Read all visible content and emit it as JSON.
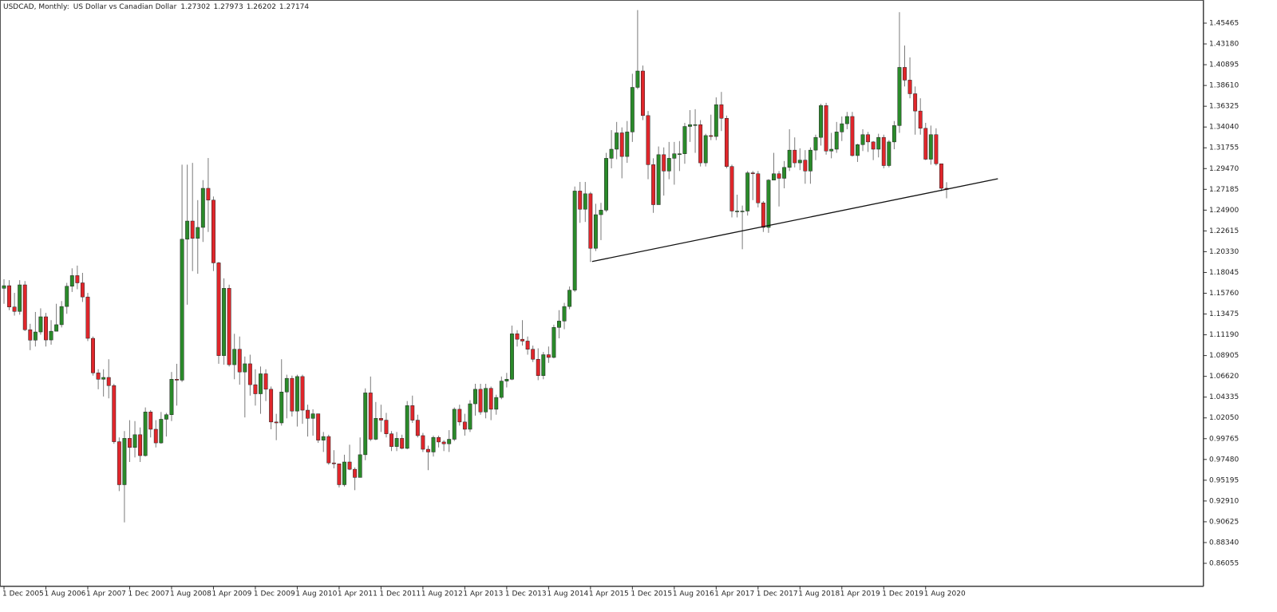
{
  "chart_data": {
    "type": "candlestick",
    "title": "USDCAD, Monthly:",
    "subtitle": "US Dollar vs Canadian Dollar",
    "quote": [
      1.27302,
      1.27973,
      1.26202,
      1.27174
    ],
    "up_color": "#2a8a2a",
    "down_color": "#e0262b",
    "wick_color": "#7a7a7a",
    "ylim": [
      0.8351,
      1.4801
    ],
    "yticks": [
      1.45465,
      {
        "value": 1.4318,
        "label": "1.43180"
      },
      1.40895,
      {
        "value": 1.3861,
        "label": "1.38610"
      },
      1.36325,
      {
        "value": 1.3404,
        "label": "1.34040"
      },
      1.31755,
      {
        "value": 1.2947,
        "label": "1.29470"
      },
      1.27185,
      {
        "value": 1.249,
        "label": "1.24900"
      },
      1.22615,
      {
        "value": 1.2033,
        "label": "1.20330"
      },
      1.18045,
      {
        "value": 1.1576,
        "label": "1.15760"
      },
      1.13475,
      {
        "value": 1.1119,
        "label": "1.11190"
      },
      1.08905,
      {
        "value": 1.0662,
        "label": "1.06620"
      },
      1.04335,
      {
        "value": 1.0205,
        "label": "1.02050"
      },
      0.99765,
      {
        "value": 0.9748,
        "label": "0.97480"
      },
      0.95195,
      {
        "value": 0.9291,
        "label": "0.92910"
      },
      0.90625,
      {
        "value": 0.8834,
        "label": "0.88340"
      },
      0.86055
    ],
    "categories": [
      "1 Dec 2005",
      null,
      null,
      null,
      null,
      null,
      null,
      null,
      "1 Aug 2006",
      null,
      null,
      null,
      null,
      null,
      null,
      null,
      "1 Apr 2007",
      null,
      null,
      null,
      null,
      null,
      null,
      null,
      "1 Dec 2007",
      null,
      null,
      null,
      null,
      null,
      null,
      null,
      "1 Aug 2008",
      null,
      null,
      null,
      null,
      null,
      null,
      null,
      "1 Apr 2009",
      null,
      null,
      null,
      null,
      null,
      null,
      null,
      "1 Dec 2009",
      null,
      null,
      null,
      null,
      null,
      null,
      null,
      "1 Aug 2010",
      null,
      null,
      null,
      null,
      null,
      null,
      null,
      "1 Apr 2011",
      null,
      null,
      null,
      null,
      null,
      null,
      null,
      "1 Dec 2011",
      null,
      null,
      null,
      null,
      null,
      null,
      null,
      "1 Aug 2012",
      null,
      null,
      null,
      null,
      null,
      null,
      null,
      "1 Apr 2013",
      null,
      null,
      null,
      null,
      null,
      null,
      null,
      "1 Dec 2013",
      null,
      null,
      null,
      null,
      null,
      null,
      null,
      "1 Aug 2014",
      null,
      null,
      null,
      null,
      null,
      null,
      null,
      "1 Apr 2015",
      null,
      null,
      null,
      null,
      null,
      null,
      null,
      "1 Dec 2015",
      null,
      null,
      null,
      null,
      null,
      null,
      null,
      "1 Aug 2016",
      null,
      null,
      null,
      null,
      null,
      null,
      null,
      "1 Apr 2017",
      null,
      null,
      null,
      null,
      null,
      null,
      null,
      "1 Dec 2017",
      null,
      null,
      null,
      null,
      null,
      null,
      null,
      "1 Aug 2018",
      null,
      null,
      null,
      null,
      null,
      null,
      null,
      "1 Apr 2019",
      null,
      null,
      null,
      null,
      null,
      null,
      null,
      "1 Dec 2019",
      null,
      null,
      null,
      null,
      null,
      null,
      null,
      "1 Aug 2020",
      null,
      null,
      null,
      null
    ],
    "open": [
      1.163,
      1.1659,
      1.1425,
      1.1376,
      1.1668,
      1.1175,
      1.106,
      1.115,
      1.1317,
      1.1062,
      1.1158,
      1.123,
      1.143,
      1.1653,
      1.177,
      1.169,
      1.1535,
      1.108,
      1.07,
      1.063,
      1.065,
      1.056,
      0.9943,
      0.947,
      0.998,
      0.988,
      1.002,
      0.979,
      1.027,
      1.008,
      0.993,
      1.019,
      1.024,
      1.063,
      1.062,
      1.217,
      1.237,
      1.218,
      1.23,
      1.273,
      1.26,
      1.191,
      1.089,
      1.163,
      1.079,
      1.096,
      1.071,
      1.08,
      1.057,
      1.047,
      1.069,
      1.052,
      1.016,
      1.015,
      1.049,
      1.064,
      1.028,
      1.066,
      1.029,
      1.02,
      1.025,
      0.996,
      1.0,
      0.971,
      0.97,
      0.947,
      0.972,
      0.964,
      0.955,
      0.98,
      1.048,
      0.997,
      1.02,
      1.018,
      1.003,
      0.989,
      0.998,
      0.987,
      1.034,
      1.018,
      1.001,
      0.986,
      0.983,
      0.999,
      0.994,
      0.992,
      0.997,
      1.03,
      1.016,
      1.008,
      1.036,
      1.052,
      1.027,
      1.053,
      1.03,
      1.043,
      1.061,
      1.063,
      1.113,
      1.107,
      1.105,
      1.096,
      1.085,
      1.067,
      1.09,
      1.087,
      1.12,
      1.127,
      1.143,
      1.161,
      1.27,
      1.25,
      1.267,
      1.207,
      1.244,
      1.249,
      1.306,
      1.316,
      1.334,
      1.308,
      1.335,
      1.384,
      1.402,
      1.353,
      1.299,
      1.255,
      1.31,
      1.292,
      1.306,
      1.311,
      1.311,
      1.341,
      1.343,
      1.343,
      1.301,
      1.331,
      1.33,
      1.365,
      1.35,
      1.297,
      1.248,
      1.248,
      1.248,
      1.29,
      1.289,
      1.257,
      1.23,
      1.282,
      1.289,
      1.284,
      1.296,
      1.315,
      1.301,
      1.304,
      1.292,
      1.315,
      1.329,
      1.364,
      1.314,
      1.316,
      1.335,
      1.344,
      1.352,
      1.309,
      1.321,
      1.332,
      1.324,
      1.316,
      1.329,
      1.298,
      1.324,
      1.342,
      1.406,
      1.392,
      1.377,
      1.358,
      1.339,
      1.305,
      1.332,
      1.3,
      1.27302
    ],
    "high": [
      1.173,
      1.172,
      1.158,
      1.172,
      1.171,
      1.124,
      1.137,
      1.141,
      1.136,
      1.128,
      1.146,
      1.149,
      1.169,
      1.185,
      1.188,
      1.18,
      1.158,
      1.11,
      1.074,
      1.074,
      1.085,
      1.058,
      0.999,
      1.006,
      1.018,
      1.017,
      1.01,
      1.032,
      1.029,
      1.018,
      1.027,
      1.026,
      1.071,
      1.08,
      1.299,
      1.299,
      1.301,
      1.26,
      1.282,
      1.3063,
      1.264,
      1.192,
      1.174,
      1.167,
      1.113,
      1.11,
      1.088,
      1.09,
      1.074,
      1.077,
      1.074,
      1.055,
      1.025,
      1.085,
      1.068,
      1.067,
      1.068,
      1.068,
      1.035,
      1.03,
      1.025,
      1.005,
      1.002,
      0.985,
      0.97,
      0.98,
      0.991,
      0.966,
      0.999,
      1.053,
      1.066,
      1.038,
      1.035,
      1.026,
      1.006,
      1.005,
      1.002,
      1.039,
      1.045,
      1.024,
      1.004,
      0.99,
      1.001,
      1.001,
      0.996,
      1.007,
      1.032,
      1.035,
      1.025,
      1.04,
      1.058,
      1.058,
      1.058,
      1.055,
      1.046,
      1.066,
      1.07,
      1.122,
      1.117,
      1.128,
      1.11,
      1.1,
      1.097,
      1.093,
      1.099,
      1.123,
      1.139,
      1.147,
      1.165,
      1.275,
      1.28,
      1.28,
      1.269,
      1.256,
      1.257,
      1.312,
      1.337,
      1.346,
      1.34,
      1.347,
      1.399,
      1.469,
      1.408,
      1.358,
      1.306,
      1.319,
      1.318,
      1.324,
      1.324,
      1.325,
      1.345,
      1.359,
      1.36,
      1.348,
      1.333,
      1.354,
      1.373,
      1.379,
      1.353,
      1.299,
      1.266,
      1.254,
      1.292,
      1.292,
      1.292,
      1.259,
      1.283,
      1.312,
      1.292,
      1.303,
      1.338,
      1.329,
      1.317,
      1.315,
      1.318,
      1.332,
      1.366,
      1.367,
      1.334,
      1.346,
      1.352,
      1.357,
      1.357,
      1.322,
      1.338,
      1.335,
      1.325,
      1.333,
      1.332,
      1.326,
      1.347,
      1.4667,
      1.43,
      1.417,
      1.385,
      1.372,
      1.345,
      1.342,
      1.339,
      1.3,
      1.27973
    ],
    "low": [
      1.146,
      1.139,
      1.133,
      1.134,
      1.116,
      1.095,
      1.099,
      1.112,
      1.099,
      1.101,
      1.116,
      1.12,
      1.135,
      1.159,
      1.162,
      1.148,
      1.105,
      1.067,
      1.052,
      1.044,
      1.042,
      0.992,
      0.94,
      0.9056,
      0.972,
      0.977,
      0.972,
      0.978,
      0.999,
      0.988,
      0.992,
      1.0,
      1.017,
      1.034,
      1.06,
      1.145,
      1.182,
      1.179,
      1.214,
      1.225,
      1.182,
      1.08,
      1.079,
      1.077,
      1.063,
      1.057,
      1.021,
      1.045,
      1.034,
      1.025,
      1.039,
      1.008,
      0.996,
      1.012,
      1.02,
      1.022,
      1.011,
      1.014,
      1.0,
      1.001,
      0.993,
      0.983,
      0.969,
      0.965,
      0.944,
      0.945,
      0.963,
      0.941,
      0.955,
      0.974,
      0.995,
      0.996,
      1.005,
      0.999,
      0.984,
      0.984,
      0.986,
      0.986,
      1.015,
      0.999,
      0.983,
      0.963,
      0.978,
      0.988,
      0.984,
      0.983,
      0.995,
      1.012,
      1.001,
      1.005,
      1.023,
      1.024,
      1.02,
      1.018,
      1.024,
      1.041,
      1.054,
      1.062,
      1.099,
      1.1,
      1.09,
      1.082,
      1.062,
      1.063,
      1.081,
      1.086,
      1.108,
      1.118,
      1.14,
      1.159,
      1.235,
      1.236,
      1.192,
      1.204,
      1.216,
      1.247,
      1.295,
      1.305,
      1.284,
      1.301,
      1.324,
      1.382,
      1.348,
      1.283,
      1.246,
      1.255,
      1.265,
      1.283,
      1.277,
      1.292,
      1.3,
      1.324,
      1.312,
      1.297,
      1.297,
      1.326,
      1.326,
      1.336,
      1.295,
      1.241,
      1.241,
      1.206,
      1.243,
      1.26,
      1.252,
      1.225,
      1.224,
      1.282,
      1.253,
      1.273,
      1.292,
      1.296,
      1.293,
      1.278,
      1.278,
      1.304,
      1.32,
      1.31,
      1.306,
      1.312,
      1.325,
      1.338,
      1.308,
      1.302,
      1.314,
      1.313,
      1.304,
      1.307,
      1.295,
      1.296,
      1.316,
      1.334,
      1.385,
      1.372,
      1.332,
      1.332,
      1.304,
      1.299,
      1.298,
      1.27,
      1.26202
    ],
    "close": [
      1.1659,
      1.1425,
      1.1376,
      1.1668,
      1.1175,
      1.106,
      1.115,
      1.1317,
      1.1062,
      1.1158,
      1.123,
      1.143,
      1.1653,
      1.177,
      1.169,
      1.1535,
      1.108,
      1.07,
      1.063,
      1.065,
      1.056,
      0.9943,
      0.947,
      0.998,
      0.988,
      1.002,
      0.979,
      1.027,
      1.008,
      0.993,
      1.019,
      1.024,
      1.063,
      1.062,
      1.217,
      1.237,
      1.218,
      1.23,
      1.273,
      1.26,
      1.191,
      1.089,
      1.163,
      1.079,
      1.096,
      1.071,
      1.08,
      1.057,
      1.047,
      1.069,
      1.052,
      1.016,
      1.015,
      1.049,
      1.064,
      1.028,
      1.066,
      1.029,
      1.02,
      1.025,
      0.996,
      1.0,
      0.971,
      0.97,
      0.947,
      0.972,
      0.964,
      0.955,
      0.98,
      1.048,
      0.997,
      1.02,
      1.018,
      1.003,
      0.989,
      0.998,
      0.987,
      1.034,
      1.018,
      1.001,
      0.986,
      0.983,
      0.999,
      0.994,
      0.992,
      0.997,
      1.03,
      1.016,
      1.008,
      1.036,
      1.052,
      1.027,
      1.053,
      1.03,
      1.043,
      1.061,
      1.063,
      1.113,
      1.107,
      1.105,
      1.096,
      1.085,
      1.067,
      1.09,
      1.087,
      1.12,
      1.127,
      1.143,
      1.161,
      1.27,
      1.25,
      1.267,
      1.207,
      1.244,
      1.249,
      1.306,
      1.316,
      1.334,
      1.308,
      1.335,
      1.384,
      1.402,
      1.353,
      1.299,
      1.255,
      1.31,
      1.292,
      1.306,
      1.311,
      1.311,
      1.341,
      1.343,
      1.343,
      1.301,
      1.331,
      1.33,
      1.365,
      1.35,
      1.297,
      1.248,
      1.248,
      1.248,
      1.29,
      1.289,
      1.257,
      1.23,
      1.282,
      1.289,
      1.284,
      1.296,
      1.315,
      1.301,
      1.304,
      1.292,
      1.315,
      1.329,
      1.364,
      1.314,
      1.316,
      1.335,
      1.344,
      1.352,
      1.309,
      1.321,
      1.332,
      1.324,
      1.316,
      1.329,
      1.298,
      1.324,
      1.342,
      1.406,
      1.392,
      1.377,
      1.358,
      1.339,
      1.305,
      1.332,
      1.3,
      1.273,
      1.27174
    ],
    "trendline": {
      "x": [
        112.3,
        189.8
      ],
      "y": [
        1.1925,
        1.2835
      ],
      "color": "#111111"
    }
  }
}
